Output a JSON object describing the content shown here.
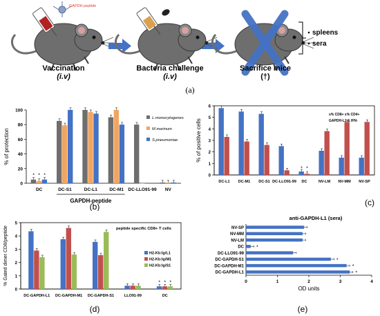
{
  "panel_a": {
    "peptide_label": "GAPDH peptide",
    "steps": [
      {
        "label": "Vaccination",
        "route": "(i.v)"
      },
      {
        "label": "Bacteria challenge",
        "route": "(i.v)"
      },
      {
        "label": "Sacrifice mice",
        "route": "(†)"
      }
    ],
    "samples": [
      "spleens",
      "sera"
    ],
    "letter": "(a)"
  },
  "letters": {
    "b": "(b)",
    "c": "(c)",
    "d": "(d)",
    "e": "(e)"
  },
  "colors": {
    "blue": "#4472c4",
    "red": "#c0504d",
    "gray": "#6e6e6e",
    "orange": "#f0a562",
    "green": "#9bbb59",
    "arrow": "#4472c4"
  },
  "chart_data": [
    {
      "id": "b",
      "type": "bar",
      "ylabel": "% of protection",
      "ylim": [
        0,
        100
      ],
      "yticks": [
        0,
        20,
        40,
        60,
        80,
        100
      ],
      "categories": [
        "DC",
        "DC-S1",
        "DC-L1",
        "DC-M1",
        "DC-LLO91-99",
        "NV"
      ],
      "group_label": "GAPDH-peptide",
      "series": [
        {
          "name": "L.monocytogenes",
          "values": [
            5,
            85,
            100,
            90,
            80,
            1
          ]
        },
        {
          "name": "M.marinum",
          "values": [
            3,
            79,
            97,
            100,
            0,
            1
          ]
        },
        {
          "name": "S.pneumoniae",
          "values": [
            5,
            100,
            95,
            80,
            0,
            1
          ]
        }
      ],
      "asterisks": [
        "*",
        "*",
        "*"
      ]
    },
    {
      "id": "c",
      "type": "bar",
      "ylabel": "% of positive cells",
      "ylim": [
        0,
        6
      ],
      "yticks": [
        0,
        1,
        2,
        3,
        4,
        5,
        6
      ],
      "categories": [
        "DC-L1",
        "DC-M1",
        "DC-S1",
        "DC-LLO91-99",
        "DC",
        "NV-LM",
        "NV-MM",
        "NV-SP"
      ],
      "legend_lines": [
        "s% CD8+ s% CD4+",
        "GAPDH-L1 & IFN-"
      ],
      "series": [
        {
          "values": [
            5.8,
            5.5,
            5.3,
            2.5,
            0.3,
            2.1,
            1.5,
            1.5
          ]
        },
        {
          "values": [
            3.3,
            2.9,
            2.6,
            0.4,
            0.1,
            3.8,
            4.6,
            4.6
          ]
        }
      ],
      "asterisks": [
        "*",
        "*"
      ]
    },
    {
      "id": "d",
      "type": "bar",
      "ylabel": "% Gated dimer CD8/peptide",
      "ylim": [
        0,
        5
      ],
      "yticks": [
        0,
        1,
        2,
        3,
        4,
        5
      ],
      "categories": [
        "DC-GAPDH-L1",
        "DC-GAPDH-M1",
        "DC-GAPDH-S1",
        "LLO91-99",
        "DC"
      ],
      "title": "peptide specific CD8+ T cells",
      "series": [
        {
          "name": "H2-Kb:Ig/L1",
          "values": [
            4.35,
            3.75,
            3.55,
            0.25,
            0.2
          ]
        },
        {
          "name": "H2-Kb:Ig/M1",
          "values": [
            2.9,
            4.6,
            2.55,
            0.25,
            0.2
          ]
        },
        {
          "name": "H2-Kb:Ig/S1",
          "values": [
            2.4,
            2.6,
            4.3,
            0.25,
            0.2
          ]
        }
      ],
      "asterisks": [
        "*",
        "*",
        "*"
      ]
    },
    {
      "id": "e",
      "type": "bar",
      "orientation": "horizontal",
      "title": "anti-GAPDH-L1 (sera)",
      "xlabel": "OD units",
      "xlim": [
        0,
        4
      ],
      "xticks": [
        0,
        1,
        2,
        3,
        4
      ],
      "categories": [
        "NV-SP",
        "NV-MM",
        "NV-LM",
        "DC",
        "DC-LLO91-99",
        "DC-GAPDH-S1",
        "DC-GAPDH-M1",
        "DC-GAPDH-L1"
      ],
      "values": [
        1.85,
        1.8,
        1.8,
        0.15,
        1.5,
        2.7,
        3.2,
        3.3
      ],
      "asterisks": [
        "",
        "",
        "",
        "*",
        "",
        "*",
        "*",
        "*"
      ]
    }
  ]
}
